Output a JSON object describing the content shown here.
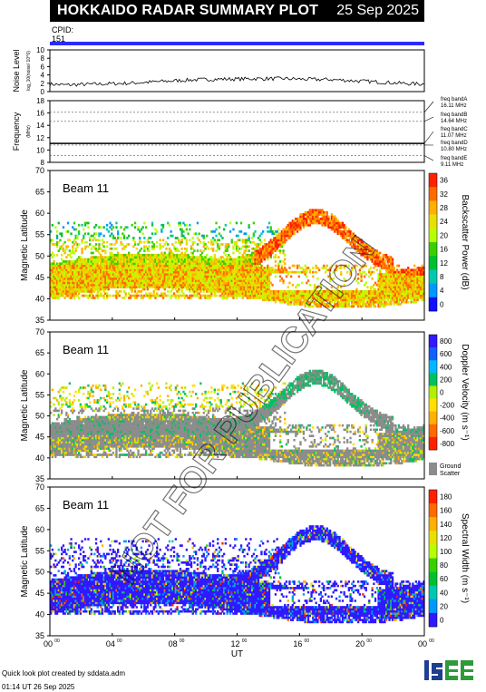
{
  "header": {
    "title": "HOKKAIDO RADAR SUMMARY PLOT",
    "date": "25 Sep 2025",
    "cpid_label": "CPID:",
    "cpid_value": "151"
  },
  "footer": {
    "created_by": "Quick look plot created by sddata.adm",
    "timestamp": "01:14 UT 26 Sep 2025"
  },
  "logo": {
    "text": "ISEE",
    "colors": [
      "#1f3f8f",
      "#2f9a3a"
    ]
  },
  "watermark": "NOT FOR PUBLICATION",
  "chart_data": [
    {
      "type": "line",
      "panel": "noise",
      "ylabel": "Noise Level",
      "ylabel_sub": "log_10(noise/ 10^0)",
      "ylim": [
        0,
        10
      ],
      "yticks": [
        "10",
        "8",
        "6",
        "4",
        "2",
        "0"
      ],
      "x_hours": [
        0,
        1,
        2,
        3,
        4,
        5,
        6,
        7,
        8,
        9,
        10,
        11,
        12,
        13,
        14,
        15,
        16,
        17,
        18,
        19,
        20,
        21,
        22,
        23,
        24
      ],
      "values": [
        1.8,
        1.6,
        1.7,
        1.8,
        1.9,
        2.0,
        2.2,
        2.4,
        2.6,
        2.8,
        2.9,
        3.0,
        3.0,
        3.1,
        3.1,
        3.1,
        3.0,
        2.9,
        2.9,
        2.7,
        2.5,
        2.3,
        2.1,
        1.9,
        1.8
      ]
    },
    {
      "type": "scatter",
      "panel": "frequency",
      "ylabel": "Frequency",
      "ylabel_sub": "(MHz)",
      "ylim": [
        8,
        18
      ],
      "yticks": [
        "18",
        "16",
        "14",
        "12",
        "10",
        "8"
      ],
      "bands": [
        {
          "label": "freq bandA",
          "value": "16.11 MHz",
          "mhz": 16.11
        },
        {
          "label": "freq bandB",
          "value": "14.64 MHz",
          "mhz": 14.64
        },
        {
          "label": "freq bandC",
          "value": "11.07 MHz",
          "mhz": 11.07
        },
        {
          "label": "freq bandD",
          "value": "10.80 MHz",
          "mhz": 10.8
        },
        {
          "label": "freq bandE",
          "value": "9.11 MHz",
          "mhz": 9.11
        }
      ],
      "operating_mhz": 11.07
    },
    {
      "type": "heatmap",
      "panel": "power",
      "beam_label": "Beam 11",
      "ylabel": "Magnetic Latitude",
      "ylim": [
        35,
        70
      ],
      "yticks": [
        "70",
        "65",
        "60",
        "55",
        "50",
        "45",
        "40",
        "35"
      ],
      "colorbar_label": "Backscatter Power (dB)",
      "colorbar_ticks": [
        "36",
        "32",
        "28",
        "24",
        "20",
        "16",
        "12",
        "8",
        "4",
        "0"
      ],
      "colors": [
        "#ff2000",
        "#ff6a00",
        "#ffb000",
        "#e8e000",
        "#b8ff00",
        "#3ad000",
        "#00c030",
        "#00c8b0",
        "#0098ff",
        "#1010ff"
      ]
    },
    {
      "type": "heatmap",
      "panel": "velocity",
      "beam_label": "Beam 11",
      "ylabel": "Magnetic Latitude",
      "ylim": [
        35,
        70
      ],
      "yticks": [
        "70",
        "65",
        "60",
        "55",
        "50",
        "45",
        "40",
        "35"
      ],
      "colorbar_label": "Doppler Velocity (m s⁻¹)",
      "colorbar_ticks": [
        "800",
        "600",
        "400",
        "200",
        "0",
        "-200",
        "-400",
        "-600",
        "-800"
      ],
      "ground_scatter_label": [
        "Ground",
        "Scatter"
      ],
      "colors": [
        "#3018ff",
        "#1060ff",
        "#00b8ff",
        "#00c060",
        "#b0f000",
        "#ffe000",
        "#ffb000",
        "#ff6a00",
        "#ff2000"
      ]
    },
    {
      "type": "heatmap",
      "panel": "width",
      "beam_label": "Beam 11",
      "ylabel": "Magnetic Latitude",
      "ylim": [
        35,
        70
      ],
      "yticks": [
        "70",
        "65",
        "60",
        "55",
        "50",
        "45",
        "40",
        "35"
      ],
      "xlabel": "UT",
      "xticks": [
        "00",
        "04",
        "08",
        "12",
        "16",
        "20",
        "00"
      ],
      "colorbar_label": "Spectral Width (m s⁻¹)",
      "colorbar_ticks": [
        "180",
        "160",
        "140",
        "120",
        "100",
        "80",
        "60",
        "40",
        "20",
        "0"
      ],
      "colors": [
        "#ff2000",
        "#ff6a00",
        "#ffb000",
        "#e8e000",
        "#b8ff00",
        "#3ad000",
        "#00c030",
        "#00c8b0",
        "#0098ff",
        "#3018ff"
      ]
    }
  ]
}
